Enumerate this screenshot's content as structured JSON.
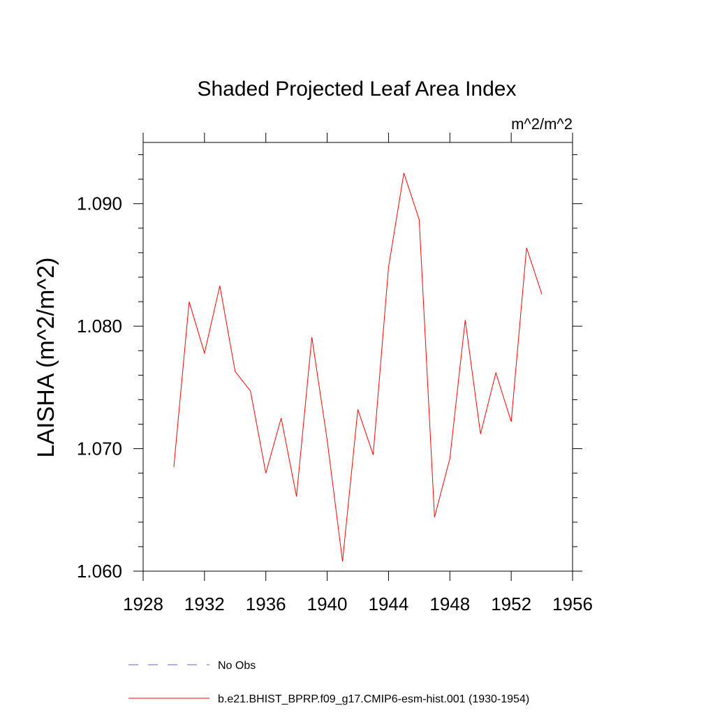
{
  "chart_data": {
    "type": "line",
    "title": "Shaded Projected Leaf Area Index",
    "units": "m^2/m^2",
    "ylabel": "LAISHA  (m^2/m^2)",
    "xlabel": "",
    "xlim": [
      1928,
      1956
    ],
    "ylim": [
      1.06,
      1.095
    ],
    "xticks": [
      1928,
      1932,
      1936,
      1940,
      1944,
      1948,
      1952,
      1956
    ],
    "xtick_labels": [
      "1928",
      "1932",
      "1936",
      "1940",
      "1944",
      "1948",
      "1952",
      "1956"
    ],
    "yticks": [
      1.06,
      1.07,
      1.08,
      1.09
    ],
    "ytick_labels": [
      "1.060",
      "1.070",
      "1.080",
      "1.090"
    ],
    "grid": false,
    "legend_position": "bottom",
    "series": [
      {
        "name": "No Obs",
        "color": "#6a5acd",
        "style": "dashed",
        "x": [],
        "y": []
      },
      {
        "name": "b.e21.BHIST_BPRP.f09_g17.CMIP6-esm-hist.001 (1930-1954)",
        "color": "#ff0000",
        "style": "solid",
        "x": [
          1930,
          1931,
          1932,
          1933,
          1934,
          1935,
          1936,
          1937,
          1938,
          1939,
          1940,
          1941,
          1942,
          1943,
          1944,
          1945,
          1946,
          1947,
          1948,
          1949,
          1950,
          1951,
          1952,
          1953,
          1954
        ],
        "y": [
          1.0685,
          1.082,
          1.0778,
          1.0833,
          1.0763,
          1.0747,
          1.068,
          1.0725,
          1.0661,
          1.0791,
          1.0707,
          1.0608,
          1.0732,
          1.0695,
          1.0848,
          1.0925,
          1.0887,
          1.0644,
          1.0692,
          1.0805,
          1.0712,
          1.0762,
          1.0722,
          1.0864,
          1.0826
        ]
      }
    ]
  }
}
